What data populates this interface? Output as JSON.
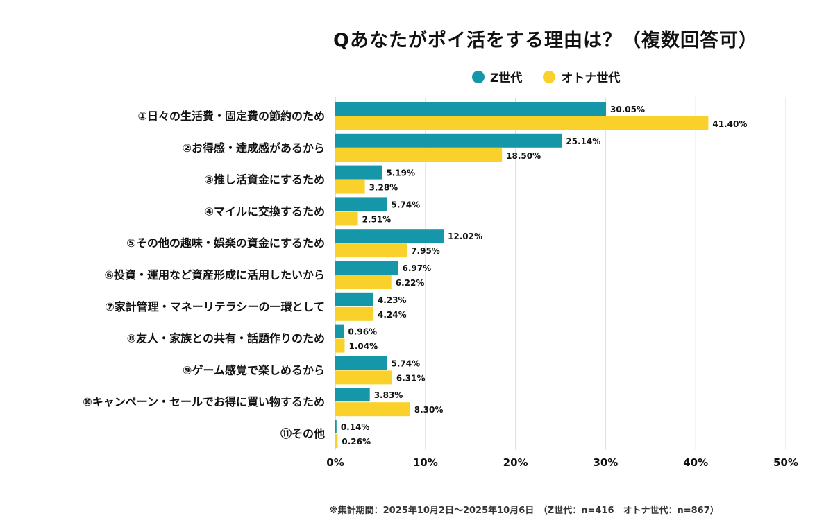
{
  "chart_data": {
    "type": "bar",
    "orientation": "horizontal",
    "title": "Qあなたがポイ活をする理由は？（複数回答可）",
    "categories": [
      "①日々の生活費・固定費の節約のため",
      "②お得感・達成感があるから",
      "③推し活資金にするため",
      "④マイルに交換するため",
      "⑤その他の趣味・娯楽の資金にするため",
      "⑥投資・運用など資産形成に活用したいから",
      "⑦家計管理・マネーリテラシーの一環として",
      "⑧友人・家族との共有・話題作りのため",
      "⑨ゲーム感覚で楽しめるから",
      "⑩キャンペーン・セールでお得に買い物するため",
      "⑪その他"
    ],
    "series": [
      {
        "name": "Z世代",
        "color": "#1597a9",
        "values": [
          30.05,
          25.14,
          5.19,
          5.74,
          12.02,
          6.97,
          4.23,
          0.96,
          5.74,
          3.83,
          0.14
        ]
      },
      {
        "name": "オトナ世代",
        "color": "#f9d12a",
        "values": [
          41.4,
          18.5,
          3.28,
          2.51,
          7.95,
          6.22,
          4.24,
          1.04,
          6.31,
          8.3,
          0.26
        ]
      }
    ],
    "xlim": [
      0,
      50
    ],
    "xticks": [
      "0%",
      "10%",
      "20%",
      "30%",
      "40%",
      "50%"
    ],
    "grid": true,
    "legend_position": "top",
    "footnote": "※集計期間：2025年10月2日〜2025年10月6日　（Z世代：n=416　オトナ世代：n=867）"
  }
}
